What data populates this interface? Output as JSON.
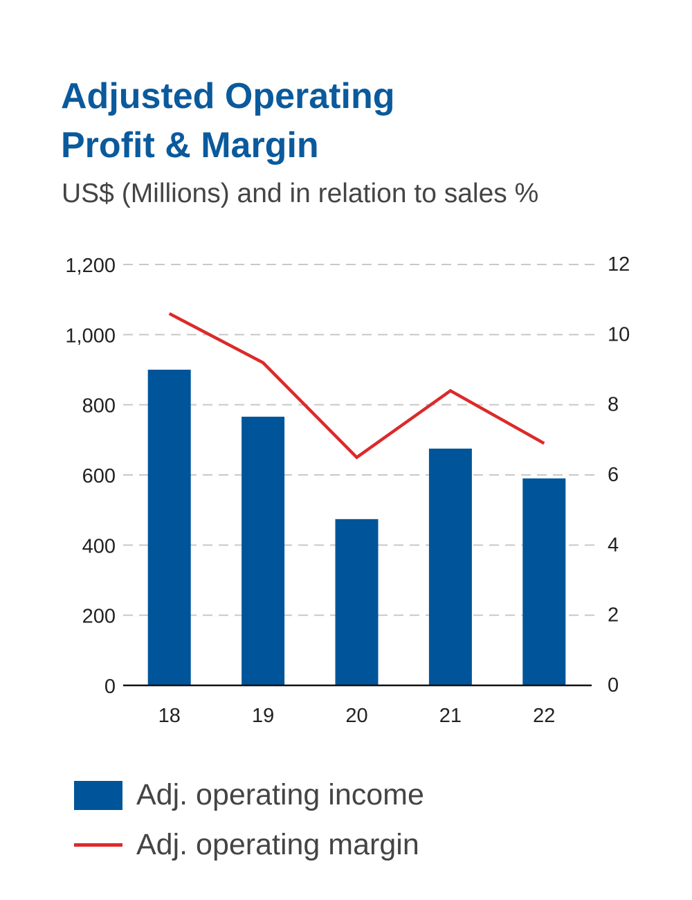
{
  "title_line1": "Adjusted Operating",
  "title_line2": "Profit & Margin",
  "subtitle": "US$ (Millions) and in relation to sales %",
  "chart_data": {
    "type": "bar+line",
    "categories": [
      "18",
      "19",
      "20",
      "21",
      "22"
    ],
    "series": [
      {
        "name": "Adj. operating income",
        "type": "bar",
        "axis": "left",
        "color": "#00559a",
        "values": [
          900,
          766,
          474,
          675,
          590
        ]
      },
      {
        "name": "Adj. operating margin",
        "type": "line",
        "axis": "right",
        "color": "#dc2a2a",
        "values": [
          10.6,
          9.2,
          6.5,
          8.4,
          6.9
        ]
      }
    ],
    "left_axis": {
      "ylim": [
        0,
        1200
      ],
      "ticks": [
        "0",
        "200",
        "400",
        "600",
        "800",
        "1,000",
        "1,200"
      ]
    },
    "right_axis": {
      "ylim": [
        0,
        12
      ],
      "ticks": [
        "0",
        "2",
        "4",
        "6",
        "8",
        "10",
        "12"
      ]
    },
    "grid": "dashed horizontal",
    "legend_position": "bottom"
  }
}
